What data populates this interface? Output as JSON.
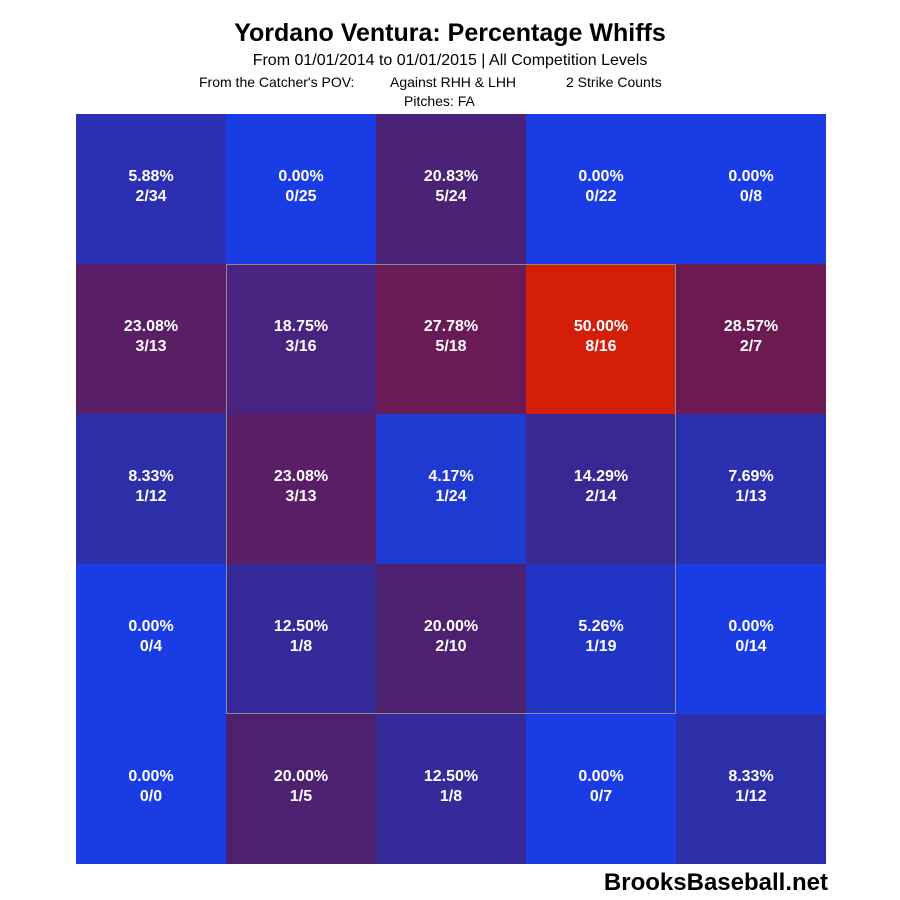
{
  "header": {
    "title": "Yordano Ventura: Percentage Whiffs",
    "subtitle": "From 01/01/2014 to 01/01/2015 | All Competition Levels",
    "pov": "From the Catcher's POV:",
    "handedness": "Against RHH & LHH",
    "counts": "2 Strike Counts",
    "pitches": "Pitches:  FA"
  },
  "watermark": "BrooksBaseball.net",
  "chart_data": {
    "type": "heatmap",
    "title": "Yordano Ventura: Percentage Whiffs",
    "rows": 5,
    "cols": 5,
    "cells": [
      {
        "pct": "5.88%",
        "frac": "2/34",
        "color": "#2c2fb2"
      },
      {
        "pct": "0.00%",
        "frac": "0/25",
        "color": "#1a3ce4"
      },
      {
        "pct": "20.83%",
        "frac": "5/24",
        "color": "#4a2276"
      },
      {
        "pct": "0.00%",
        "frac": "0/22",
        "color": "#1a3ce4"
      },
      {
        "pct": "0.00%",
        "frac": "0/8",
        "color": "#1a3ce4"
      },
      {
        "pct": "23.08%",
        "frac": "3/13",
        "color": "#5a1e66"
      },
      {
        "pct": "18.75%",
        "frac": "3/16",
        "color": "#48237f"
      },
      {
        "pct": "27.78%",
        "frac": "5/18",
        "color": "#6a1a56"
      },
      {
        "pct": "50.00%",
        "frac": "8/16",
        "color": "#d41e08"
      },
      {
        "pct": "28.57%",
        "frac": "2/7",
        "color": "#6d1a52"
      },
      {
        "pct": "8.33%",
        "frac": "1/12",
        "color": "#2c2fa8"
      },
      {
        "pct": "23.08%",
        "frac": "3/13",
        "color": "#5a1e66"
      },
      {
        "pct": "4.17%",
        "frac": "1/24",
        "color": "#1e3ad0"
      },
      {
        "pct": "14.29%",
        "frac": "2/14",
        "color": "#3a2892"
      },
      {
        "pct": "7.69%",
        "frac": "1/13",
        "color": "#2a30ae"
      },
      {
        "pct": "0.00%",
        "frac": "0/4",
        "color": "#1a3ce4"
      },
      {
        "pct": "12.50%",
        "frac": "1/8",
        "color": "#36299a"
      },
      {
        "pct": "20.00%",
        "frac": "2/10",
        "color": "#4e2170"
      },
      {
        "pct": "5.26%",
        "frac": "1/19",
        "color": "#2034c6"
      },
      {
        "pct": "0.00%",
        "frac": "0/14",
        "color": "#1a3ce4"
      },
      {
        "pct": "0.00%",
        "frac": "0/0",
        "color": "#1a3ce4"
      },
      {
        "pct": "20.00%",
        "frac": "1/5",
        "color": "#4e2170"
      },
      {
        "pct": "12.50%",
        "frac": "1/8",
        "color": "#36299a"
      },
      {
        "pct": "0.00%",
        "frac": "0/7",
        "color": "#1a3ce4"
      },
      {
        "pct": "8.33%",
        "frac": "1/12",
        "color": "#2c2fa8"
      }
    ]
  }
}
